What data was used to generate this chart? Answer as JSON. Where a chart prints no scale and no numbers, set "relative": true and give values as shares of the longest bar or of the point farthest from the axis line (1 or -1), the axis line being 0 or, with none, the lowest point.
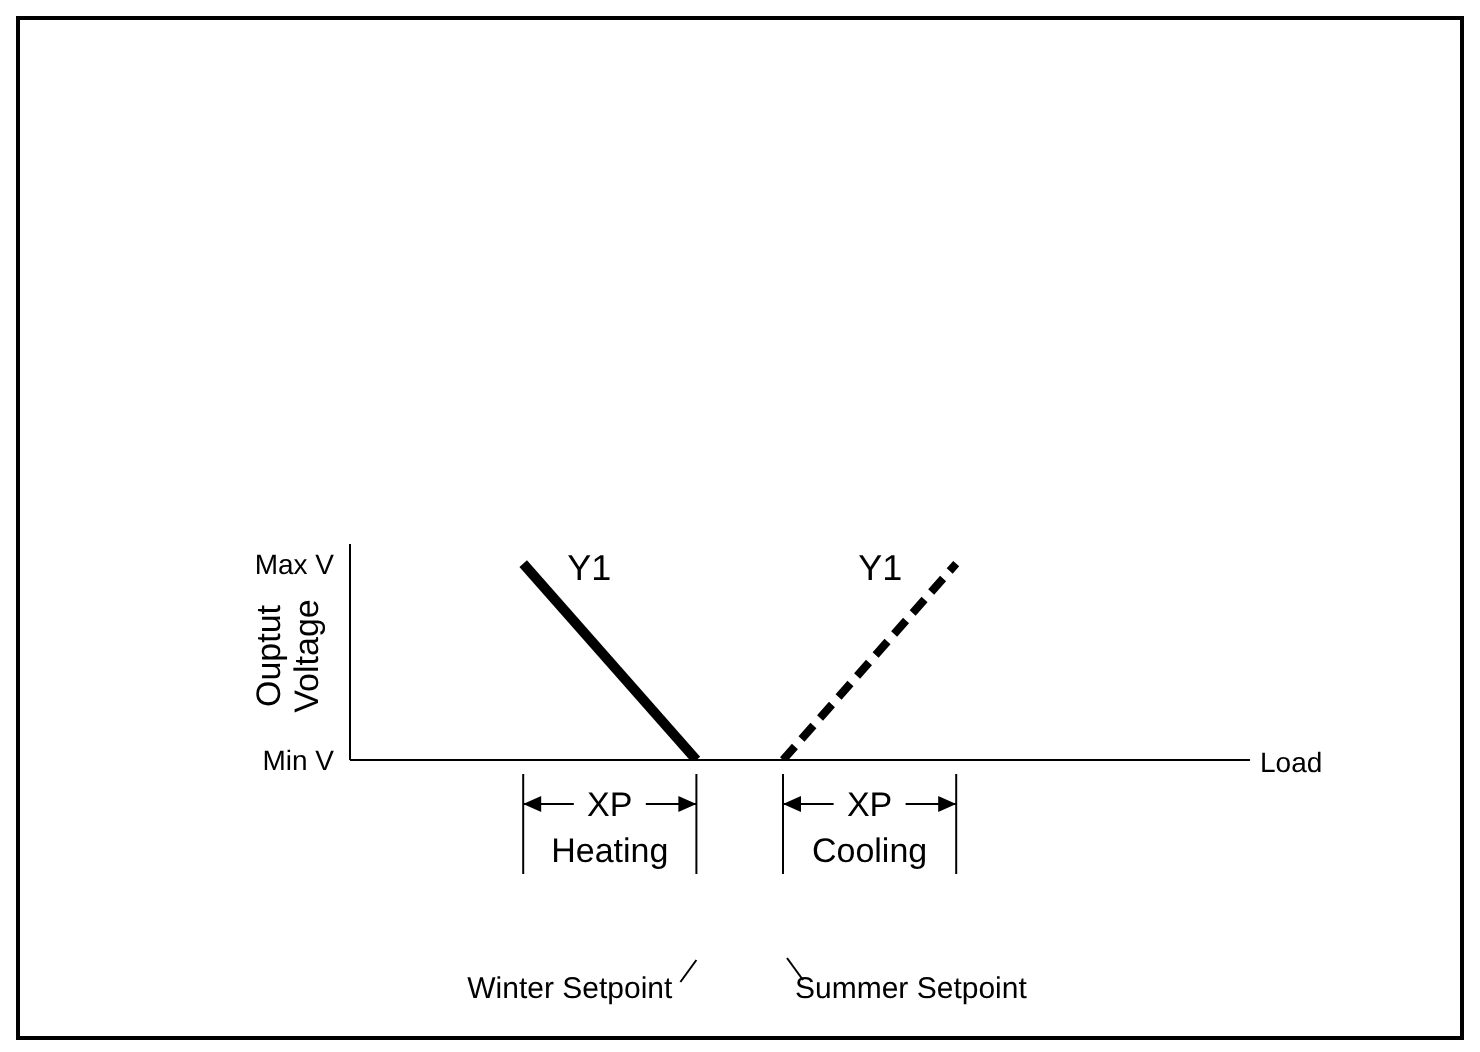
{
  "chart_data": {
    "type": "line",
    "xlabel": "Load",
    "ylabel": "Ouptut Voltage",
    "categories": [
      null,
      null,
      null,
      null,
      null,
      null,
      null,
      null,
      null,
      null,
      null
    ],
    "relative": true,
    "grid": false,
    "legend": false,
    "marker": "none",
    "series": [
      {
        "name": "Y1",
        "color": "#000000",
        "values": [
          null,
          null,
          1,
          null,
          0,
          null,
          null,
          null,
          null,
          null,
          null
        ],
        "line_style": "solid"
      },
      {
        "name": "Y1",
        "color": "#000000",
        "values": [
          null,
          null,
          null,
          null,
          null,
          0,
          null,
          1,
          null,
          null,
          null
        ],
        "line_style": "dashed"
      }
    ],
    "annotations": [
      "XP Heating",
      "XP Cooling",
      "Winter Setpoint",
      "Summer Setpoint",
      "Max V",
      "Min V"
    ]
  }
}
